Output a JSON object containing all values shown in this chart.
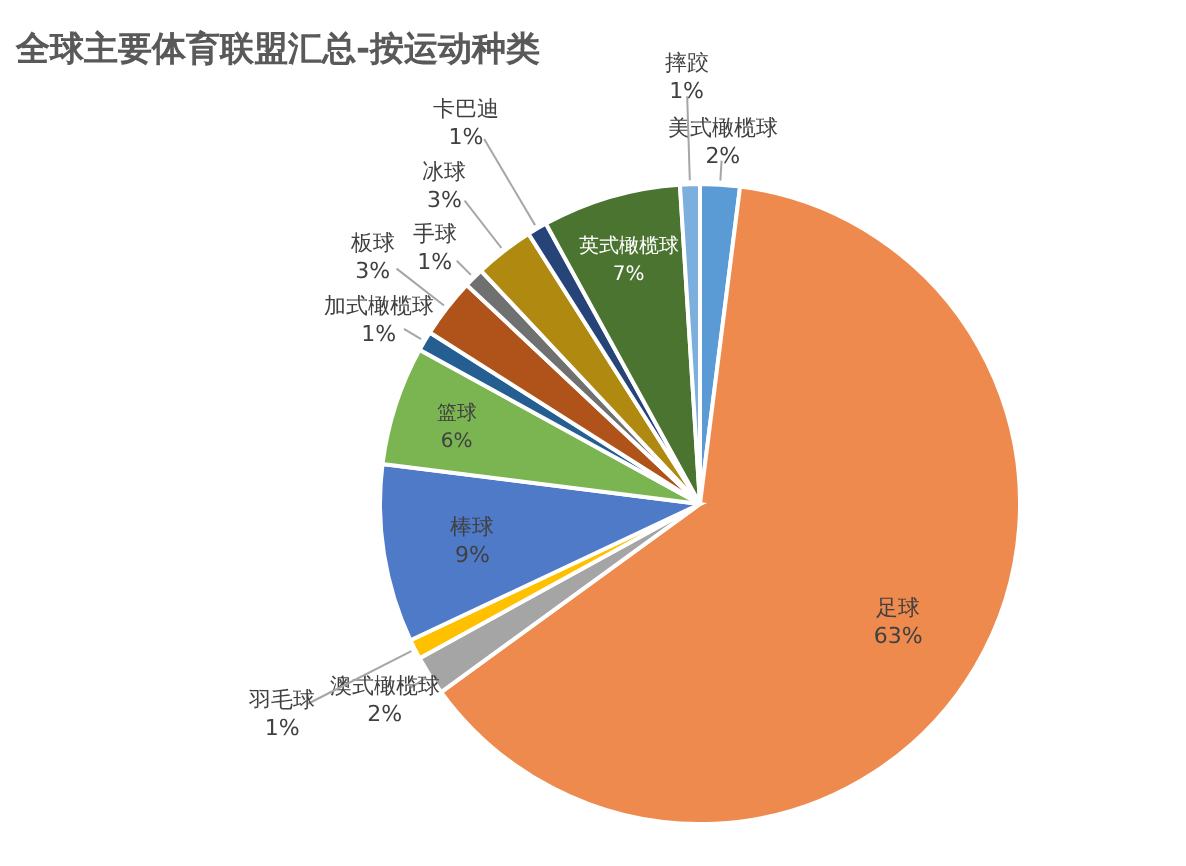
{
  "chart_data": {
    "type": "pie",
    "title": "全球主要体育联盟汇总-按运动种类",
    "categories": [
      "美式橄榄球",
      "足球",
      "澳式橄榄球",
      "羽毛球",
      "棒球",
      "篮球",
      "加式橄榄球",
      "板球",
      "手球",
      "冰球",
      "卡巴迪",
      "英式橄榄球",
      "摔跤"
    ],
    "values": [
      2,
      63,
      2,
      1,
      9,
      6,
      1,
      3,
      1,
      3,
      1,
      7,
      1
    ],
    "value_labels": [
      "2%",
      "63%",
      "2%",
      "1%",
      "9%",
      "6%",
      "1%",
      "3%",
      "1%",
      "3%",
      "1%",
      "7%",
      "1%"
    ],
    "colors": [
      "#5b9bd5",
      "#ee8a4e",
      "#a5a5a5",
      "#ffc000",
      "#4f7ac8",
      "#7ab552",
      "#255e91",
      "#b0531a",
      "#707070",
      "#b08a10",
      "#264478",
      "#4a7430",
      "#7cafdd"
    ]
  }
}
